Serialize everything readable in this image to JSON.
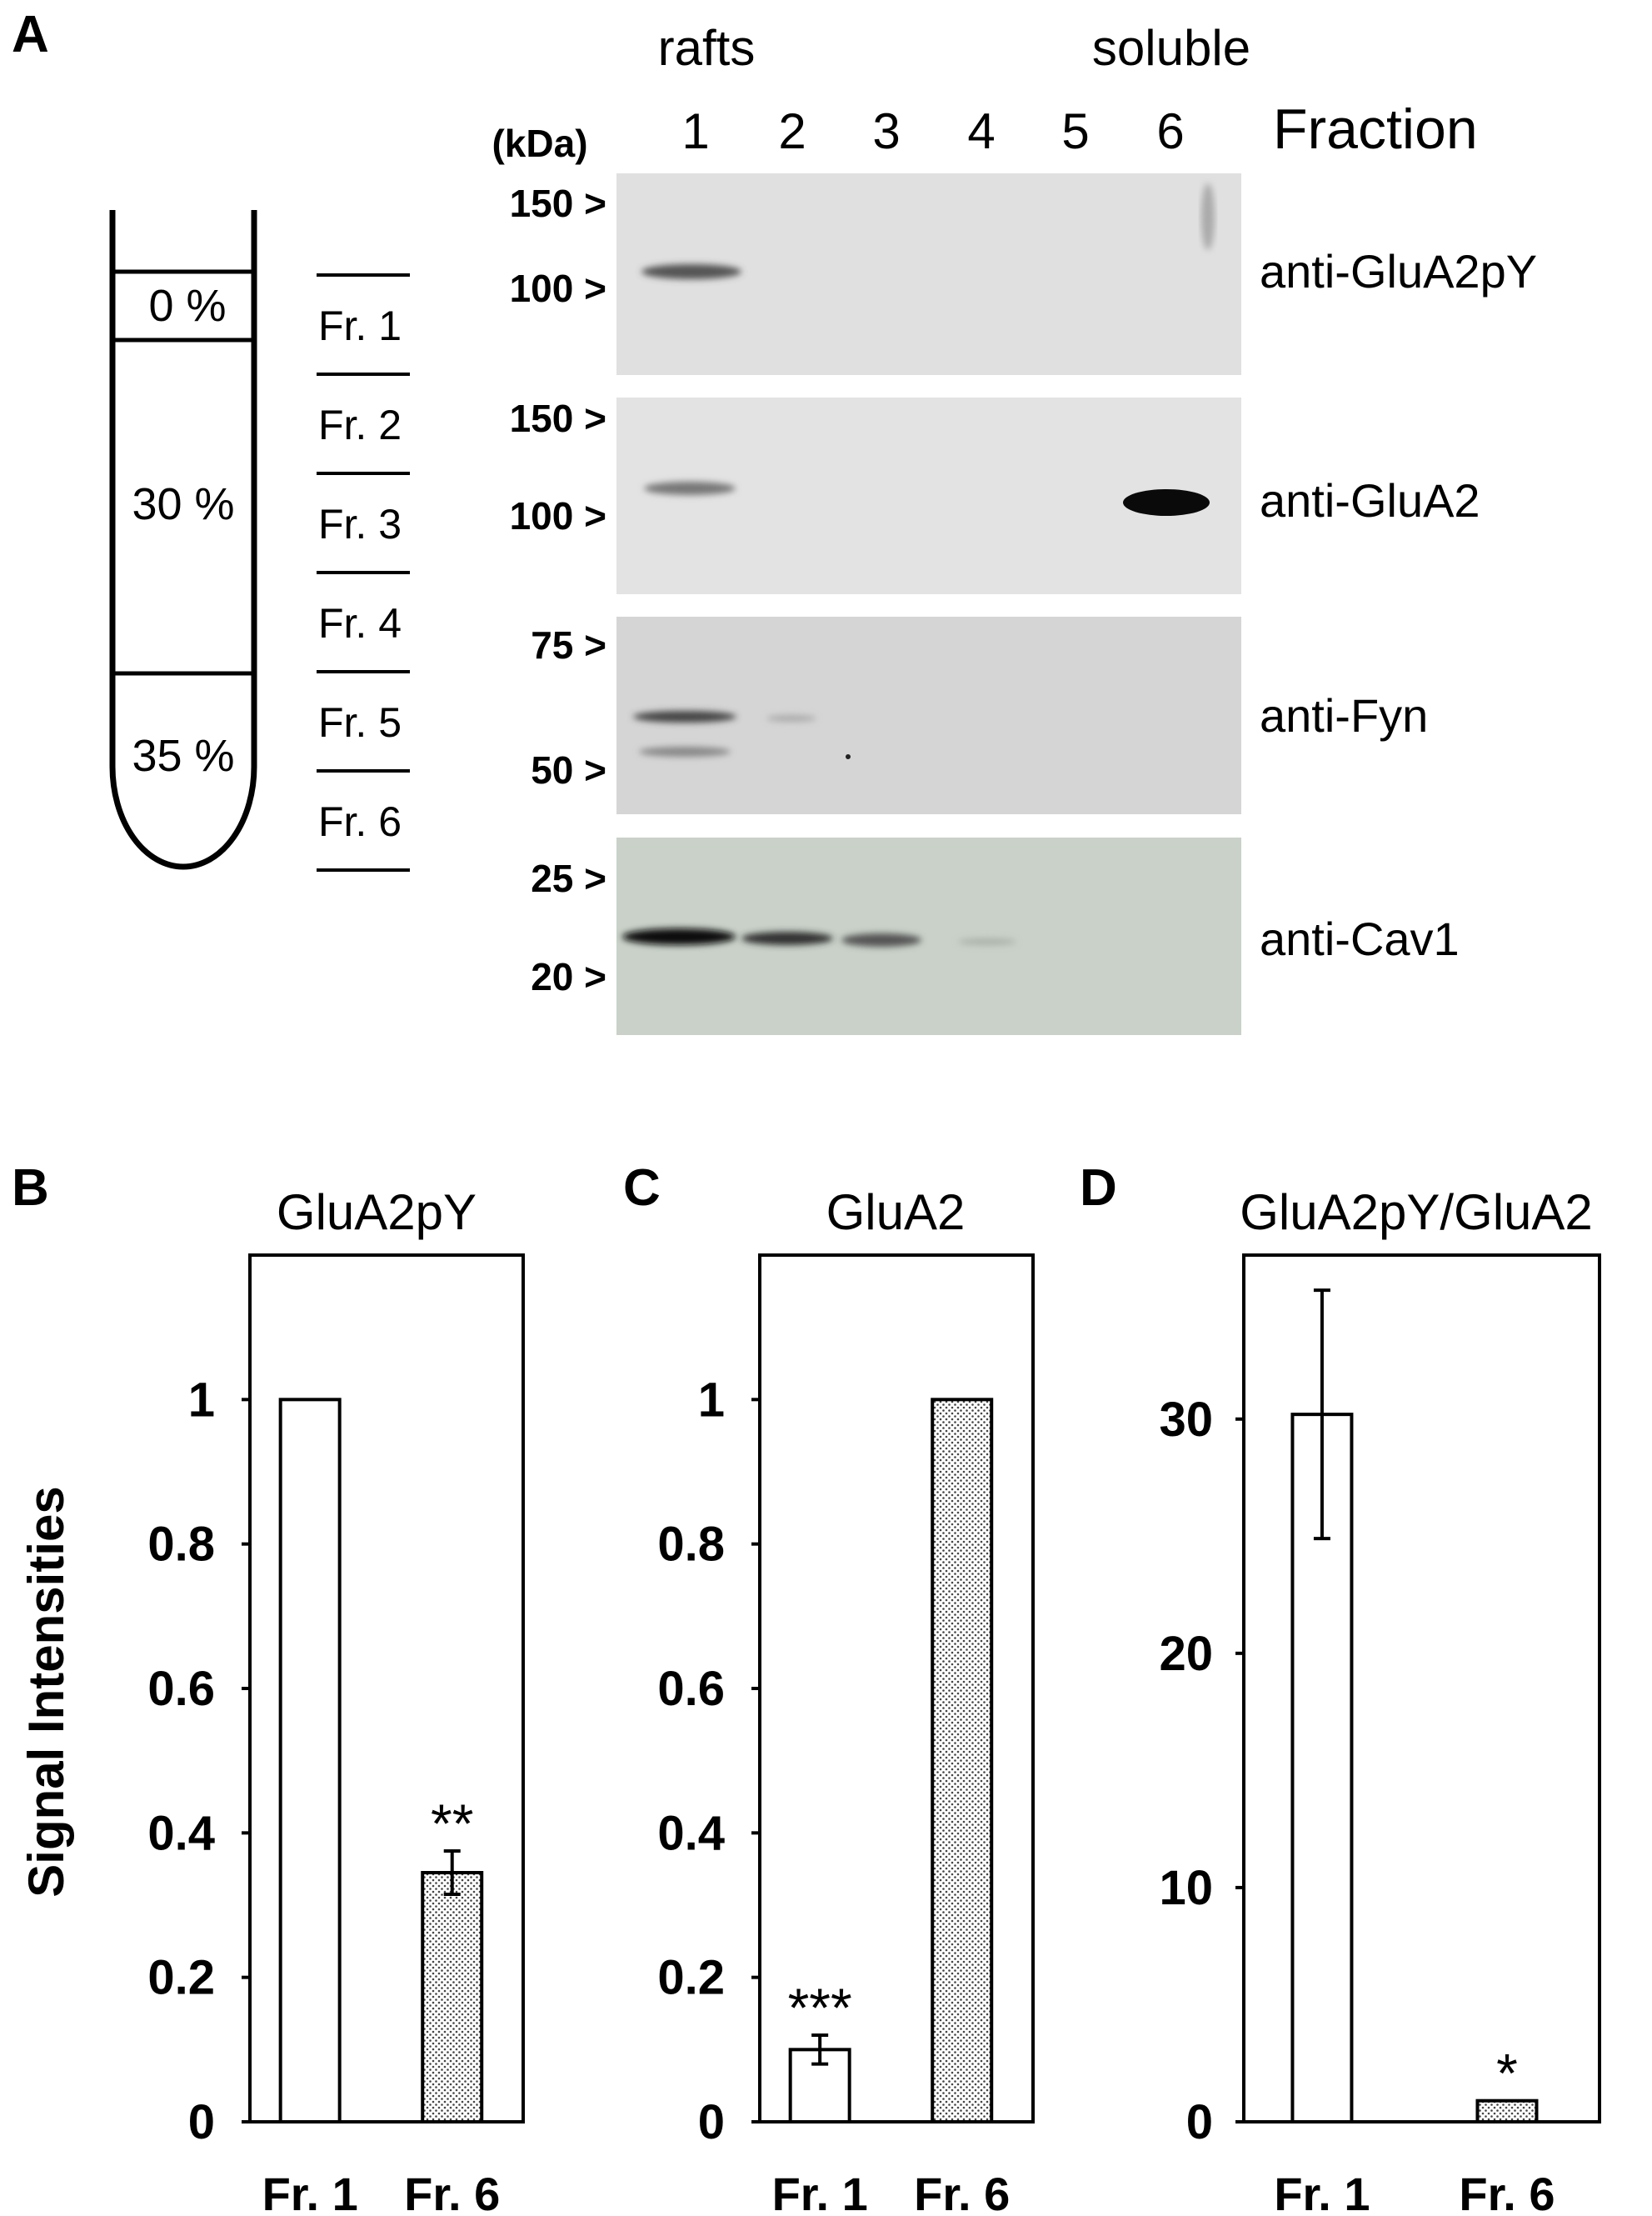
{
  "panels": {
    "a": "A",
    "b": "B",
    "c": "C",
    "d": "D"
  },
  "tube": {
    "layers": [
      "0 %",
      "30 %",
      "35 %"
    ],
    "fractions": [
      "Fr. 1",
      "Fr. 2",
      "Fr. 3",
      "Fr. 4",
      "Fr. 5",
      "Fr. 6"
    ]
  },
  "blot": {
    "kda_label": "(kDa)",
    "rafts_label": "rafts",
    "soluble_label": "soluble",
    "lanes": [
      "1",
      "2",
      "3",
      "4",
      "5",
      "6"
    ],
    "fraction_label": "Fraction",
    "rows": [
      {
        "antibody": "anti-GluA2pY",
        "markers": [
          "150 >",
          "100 >"
        ],
        "bg": "#e0e0e0"
      },
      {
        "antibody": "anti-GluA2",
        "markers": [
          "150 >",
          "100 >"
        ],
        "bg": "#e3e3e3"
      },
      {
        "antibody": "anti-Fyn",
        "markers": [
          "75 >",
          "50 >"
        ],
        "bg": "#d5d5d5"
      },
      {
        "antibody": "anti-Cav1",
        "markers": [
          "25 >",
          "20 >"
        ],
        "bg": "#c9d1c9"
      }
    ]
  },
  "ylabel_shared": "Signal Intensities",
  "chart_data": [
    {
      "type": "bar",
      "title": "GluA2pY",
      "categories": [
        "Fr. 1",
        "Fr. 6"
      ],
      "values": [
        1.0,
        0.345
      ],
      "errors": [
        0,
        0.03
      ],
      "ylim": [
        0,
        1.2
      ],
      "yticks": [
        "0",
        "0.2",
        "0.4",
        "0.6",
        "0.8",
        "1"
      ],
      "significance": [
        "",
        "**"
      ],
      "ylabel": "Signal Intensities"
    },
    {
      "type": "bar",
      "title": "GluA2",
      "categories": [
        "Fr. 1",
        "Fr. 6"
      ],
      "values": [
        0.1,
        1.0
      ],
      "errors": [
        0.02,
        0
      ],
      "ylim": [
        0,
        1.2
      ],
      "yticks": [
        "0",
        "0.2",
        "0.4",
        "0.6",
        "0.8",
        "1"
      ],
      "significance": [
        "***",
        ""
      ]
    },
    {
      "type": "bar",
      "title": "GluA2pY/GluA2",
      "categories": [
        "Fr. 1",
        "Fr. 6"
      ],
      "values": [
        30.2,
        0.9
      ],
      "errors": [
        5.3,
        0
      ],
      "ylim": [
        0,
        37
      ],
      "yticks": [
        "0",
        "10",
        "20",
        "30"
      ],
      "significance": [
        "",
        "*"
      ]
    }
  ]
}
